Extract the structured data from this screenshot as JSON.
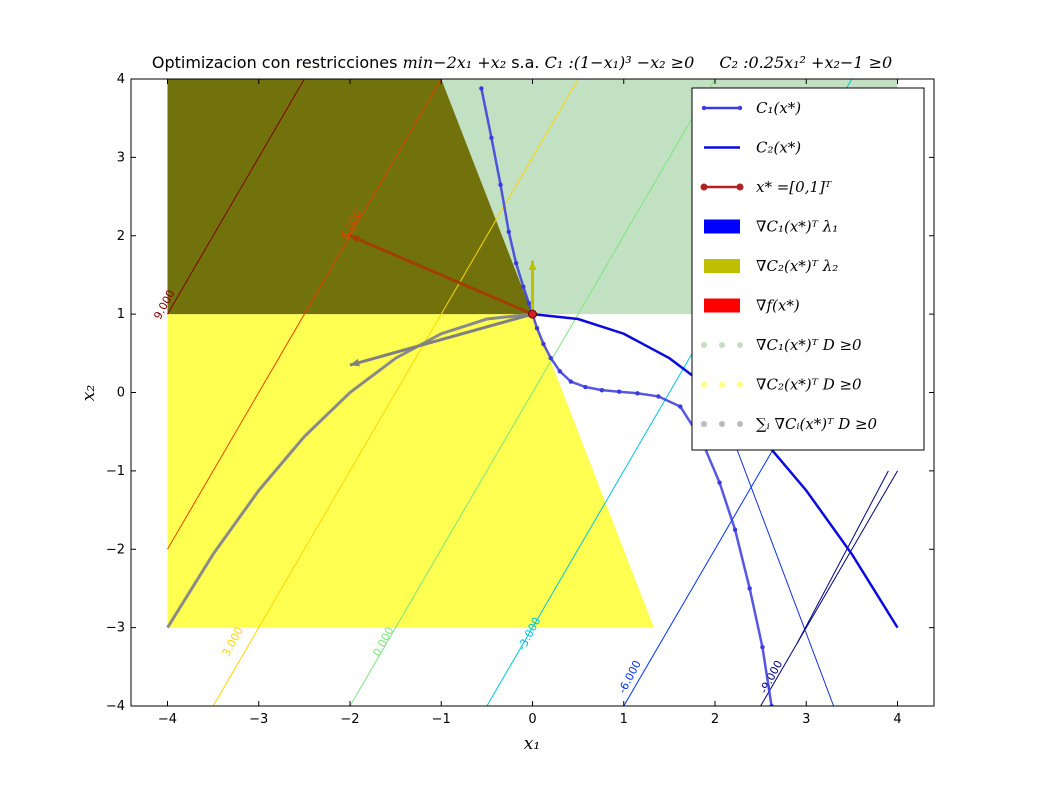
{
  "chart_data": {
    "type": "line",
    "title": "Optimizacion con restricciones min−2x₁ +x₂ s.a. C₁ :(1−x₁)³ −x₂ ≥0     C₂ :0.25x₁² +x₂−1 ≥0",
    "title_plain": "Optimizacion con restricciones",
    "title_math": "min−2x₁ +x₂",
    "title_sa": "s.a.",
    "title_c1": "C₁ :(1−x₁)³ −x₂ ≥0",
    "title_c2": "C₂ :0.25x₁² +x₂−1 ≥0",
    "xlabel": "x₁",
    "ylabel": "x₂",
    "xlim": [
      -4.4,
      4.4
    ],
    "ylim": [
      -4,
      4
    ],
    "xticks": [
      -4,
      -3,
      -2,
      -1,
      0,
      1,
      2,
      3,
      4
    ],
    "yticks": [
      -4,
      -3,
      -2,
      -1,
      0,
      1,
      2,
      3,
      4
    ],
    "grid": false,
    "legend_position": "top-right",
    "legend": [
      {
        "label": "C₁(x*)",
        "color": "#3a3adf",
        "kind": "line-marker"
      },
      {
        "label": "C₂(x*)",
        "color": "#0a0ae0",
        "kind": "line"
      },
      {
        "label": "x* =[0,1]ᵀ",
        "color": "#b22222",
        "kind": "line-marker-red"
      },
      {
        "label": "∇C₁(x*)ᵀ λ₁",
        "color": "#0000ff",
        "kind": "patch"
      },
      {
        "label": "∇C₂(x*)ᵀ λ₂",
        "color": "#bfbf00",
        "kind": "patch"
      },
      {
        "label": "∇f(x*)",
        "color": "#ff0000",
        "kind": "patch"
      },
      {
        "label": "∇C₁(x*)ᵀ D ≥0",
        "color": "#c8dcc8",
        "kind": "dots"
      },
      {
        "label": "∇C₂(x*)ᵀ D ≥0",
        "color": "#ffff80",
        "kind": "dots"
      },
      {
        "label": "∑ᵢ ∇Cᵢ(x*)ᵀ D ≥0",
        "color": "#bcbcbc",
        "kind": "dots"
      }
    ],
    "contours": [
      {
        "level": "9.000",
        "value": 9,
        "color": "#7f0000",
        "label_at": [
          -4.0,
          1.1
        ]
      },
      {
        "level": "6.000",
        "value": 6,
        "color": "#e64100",
        "label_at": [
          -1.95,
          2.12
        ]
      },
      {
        "level": "3.000",
        "value": 3,
        "color": "#ffd400",
        "label_at": [
          -3.25,
          -3.2
        ]
      },
      {
        "level": "0.000",
        "value": 0,
        "color": "#7de67d",
        "label_at": [
          -1.6,
          -3.2
        ]
      },
      {
        "level": "-3.000",
        "value": -3,
        "color": "#00c4e0",
        "label_at": [
          0.0,
          -3.1
        ]
      },
      {
        "level": "-6.000",
        "value": -6,
        "color": "#0030ff",
        "label_at": [
          1.1,
          -3.65
        ]
      },
      {
        "level": "-9.000",
        "value": -9,
        "color": "#00007f",
        "label_at": [
          2.65,
          -3.65
        ]
      }
    ],
    "c1_curve": {
      "name": "C₁(x*)",
      "x": [
        -0.56,
        -0.45,
        -0.35,
        -0.26,
        -0.18,
        -0.1,
        -0.04,
        0.0,
        0.05,
        0.12,
        0.2,
        0.3,
        0.42,
        0.58,
        0.76,
        0.95,
        1.15,
        1.38,
        1.62,
        1.85,
        2.05,
        2.22,
        2.38,
        2.52,
        2.62
      ],
      "y": [
        3.88,
        3.25,
        2.65,
        2.05,
        1.65,
        1.35,
        1.14,
        1.0,
        0.82,
        0.62,
        0.44,
        0.27,
        0.14,
        0.07,
        0.03,
        0.01,
        -0.01,
        -0.05,
        -0.18,
        -0.6,
        -1.15,
        -1.75,
        -2.5,
        -3.25,
        -4.0
      ]
    },
    "c2_curve": {
      "name": "C₂(x*)",
      "x": [
        0,
        0.5,
        1.0,
        1.5,
        2.0,
        2.5,
        3.0,
        3.5,
        4.0
      ],
      "y": [
        1.0,
        0.9375,
        0.75,
        0.4375,
        0.0,
        -0.5625,
        -1.25,
        -2.0625,
        -3.0
      ]
    },
    "point": {
      "name": "x* =[0,1]ᵀ",
      "x": 0,
      "y": 1
    },
    "arrows": [
      {
        "name": "∇C₂(x*)ᵀ λ₂",
        "from": [
          0,
          1
        ],
        "to": [
          0,
          1.68
        ],
        "color": "#bfbf00"
      },
      {
        "name": "∇f(x*)",
        "from": [
          0,
          1
        ],
        "to": [
          -2,
          2
        ],
        "color": "#a04000"
      },
      {
        "name": "∑ᵢ ∇Cᵢ(x*)ᵀ D ≥0",
        "from": [
          0,
          1
        ],
        "to": [
          -2,
          0.35
        ],
        "color": "#808080"
      }
    ],
    "gray_curve": {
      "x": [
        -4.0,
        -3.5,
        -3.0,
        -2.5,
        -2.0,
        -1.5,
        -1.0,
        -0.5,
        0.0
      ],
      "y": [
        -3.0,
        -2.0625,
        -1.25,
        -0.5625,
        0.0,
        0.4375,
        0.75,
        0.9375,
        1.0
      ]
    },
    "regions": {
      "green": {
        "name": "∇C₁(x*)ᵀ D ≥0",
        "color": "#a8d4a8",
        "polygon": [
          [
            -1.0,
            4.0
          ],
          [
            4.0,
            4.0
          ],
          [
            4.0,
            1.0
          ],
          [
            0.0,
            1.0
          ]
        ]
      },
      "yellow": {
        "name": "∇C₂(x*)ᵀ D ≥0",
        "color": "#ffff33",
        "polygon": [
          [
            -4.0,
            1.0
          ],
          [
            0.0,
            1.0
          ],
          [
            0.22,
            0.34
          ],
          [
            1.33,
            -3.0
          ],
          [
            -4.0,
            -3.0
          ]
        ]
      },
      "olive": {
        "name": "overlap",
        "color": "#6a6a00",
        "polygon": [
          [
            -4.0,
            4.0
          ],
          [
            -1.0,
            4.0
          ],
          [
            0.0,
            1.0
          ],
          [
            -4.0,
            1.0
          ]
        ]
      }
    }
  }
}
